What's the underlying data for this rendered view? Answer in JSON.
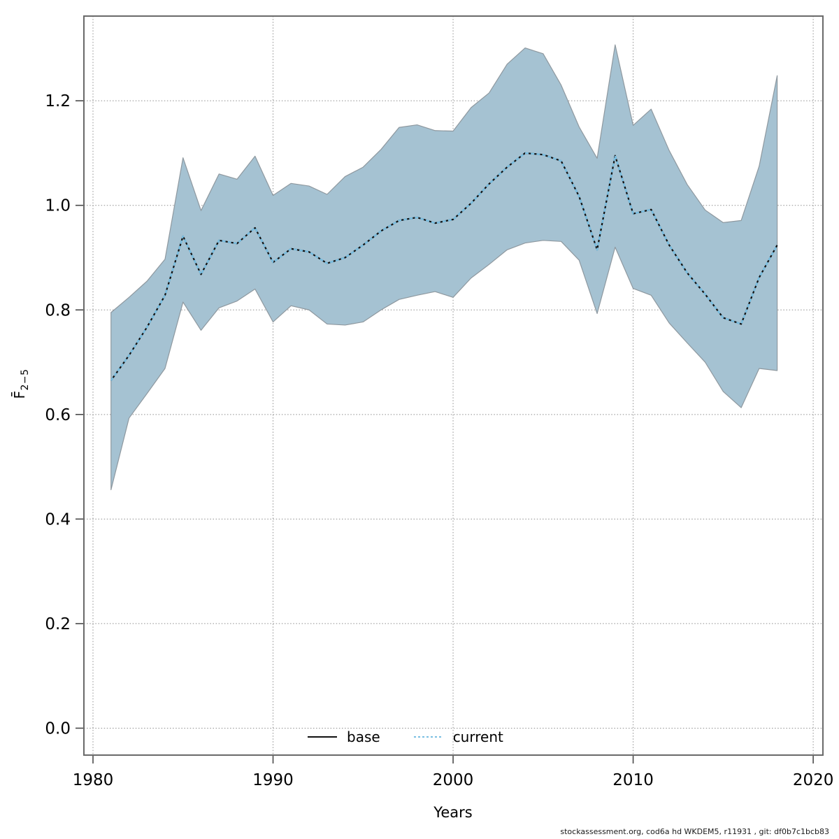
{
  "figure": {
    "xlabel": "Years",
    "ylabel_base": "F̄",
    "ylabel_sub": "2−5",
    "footer": "stockassessment.org, cod6a hd WKDEM5, r11931 , git: df0b7c1bcb83"
  },
  "legend": {
    "base_label": "base",
    "current_label": "current"
  },
  "colors": {
    "band_fill": "#a5c2d2",
    "band_edge": "#8e989f",
    "base_line": "#111111",
    "current_line": "#7abfe2",
    "grid": "#8f8f8f",
    "frame": "#6a6a6a",
    "tick": "#4a4a4a",
    "text": "#000000"
  },
  "chart_data": {
    "type": "line",
    "title": "",
    "xlabel": "Years",
    "ylabel": "F̄ 2−5",
    "x": [
      1981,
      1982,
      1983,
      1984,
      1985,
      1986,
      1987,
      1988,
      1989,
      1990,
      1991,
      1992,
      1993,
      1994,
      1995,
      1996,
      1997,
      1998,
      1999,
      2000,
      2001,
      2002,
      2003,
      2004,
      2005,
      2006,
      2007,
      2008,
      2009,
      2010,
      2011,
      2012,
      2013,
      2014,
      2015,
      2016,
      2017,
      2018
    ],
    "series": [
      {
        "name": "base",
        "values": [
          0.665,
          0.713,
          0.767,
          0.828,
          0.941,
          0.868,
          0.933,
          0.927,
          0.957,
          0.891,
          0.917,
          0.911,
          0.889,
          0.9,
          0.924,
          0.951,
          0.971,
          0.977,
          0.966,
          0.973,
          1.004,
          1.041,
          1.073,
          1.1,
          1.097,
          1.085,
          1.017,
          0.915,
          1.095,
          0.984,
          0.992,
          0.924,
          0.871,
          0.83,
          0.785,
          0.773,
          0.862,
          0.924
        ]
      },
      {
        "name": "current",
        "values": [
          0.665,
          0.713,
          0.767,
          0.828,
          0.941,
          0.868,
          0.933,
          0.927,
          0.957,
          0.891,
          0.917,
          0.911,
          0.889,
          0.9,
          0.924,
          0.951,
          0.971,
          0.977,
          0.966,
          0.973,
          1.004,
          1.041,
          1.073,
          1.1,
          1.097,
          1.085,
          1.017,
          0.915,
          1.095,
          0.984,
          0.992,
          0.924,
          0.871,
          0.83,
          0.785,
          0.773,
          0.862,
          0.924
        ]
      }
    ],
    "band": {
      "series": "current",
      "upper": [
        0.795,
        0.824,
        0.855,
        0.897,
        1.091,
        0.99,
        1.06,
        1.05,
        1.094,
        1.019,
        1.042,
        1.037,
        1.021,
        1.055,
        1.073,
        1.107,
        1.149,
        1.154,
        1.143,
        1.142,
        1.187,
        1.215,
        1.27,
        1.301,
        1.29,
        1.23,
        1.15,
        1.09,
        1.307,
        1.153,
        1.184,
        1.105,
        1.04,
        0.991,
        0.967,
        0.971,
        1.075,
        1.248
      ],
      "lower": [
        0.456,
        0.593,
        0.64,
        0.688,
        0.815,
        0.761,
        0.804,
        0.817,
        0.84,
        0.777,
        0.808,
        0.8,
        0.773,
        0.771,
        0.777,
        0.8,
        0.82,
        0.828,
        0.835,
        0.824,
        0.861,
        0.887,
        0.915,
        0.928,
        0.933,
        0.931,
        0.895,
        0.793,
        0.92,
        0.841,
        0.828,
        0.775,
        0.737,
        0.7,
        0.644,
        0.613,
        0.688,
        0.684
      ]
    },
    "xlim": [
      1979.495,
      2020.54
    ],
    "ylim": [
      -0.0515,
      1.362
    ],
    "xticks": [
      1980,
      1990,
      2000,
      2010,
      2020
    ],
    "yticks": [
      0.0,
      0.2,
      0.4,
      0.6,
      0.8,
      1.0,
      1.2
    ],
    "grid": true,
    "legend_position": "bottom-center"
  }
}
